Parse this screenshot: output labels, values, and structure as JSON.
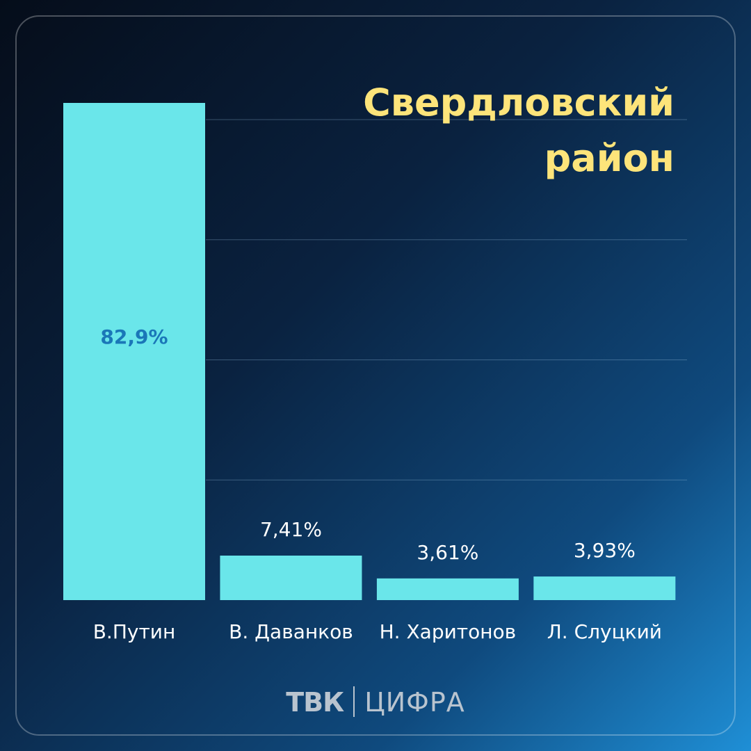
{
  "title_lines": [
    "Свердловский",
    "район"
  ],
  "chart_data": {
    "type": "bar",
    "categories": [
      "В.Путин",
      "В. Даванков",
      "Н. Харитонов",
      "Л. Слуцкий"
    ],
    "values": [
      82.9,
      7.41,
      3.61,
      3.93
    ],
    "value_labels": [
      "82,9%",
      "7,41%",
      "3,61%",
      "3,93%"
    ],
    "title": "Свердловский район",
    "xlabel": "",
    "ylabel": "",
    "ylim": [
      0,
      80
    ],
    "grid": true,
    "colors": {
      "bar": "#6ae6ea",
      "inside_label": "#1a77b8",
      "outside_label": "#ffffff",
      "category_label": "#ffffff",
      "grid": "rgba(150,190,220,0.35)"
    }
  },
  "footer": {
    "brand_bold": "ТВК",
    "brand_light": "ЦИФРА"
  }
}
